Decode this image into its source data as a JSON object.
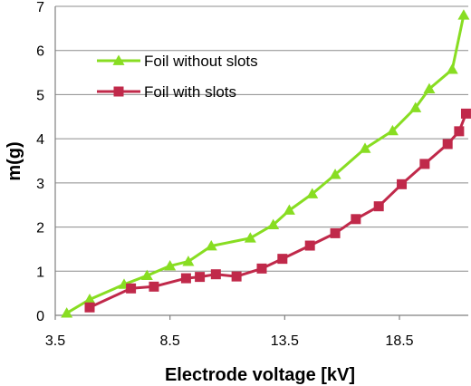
{
  "chart_data": {
    "type": "line",
    "xlabel": "Electrode voltage [kV]",
    "ylabel": "m(g)",
    "xlim": [
      3.5,
      21.5
    ],
    "ylim": [
      0,
      7
    ],
    "x_ticks": [
      3.5,
      8.5,
      13.5,
      18.5
    ],
    "x_tick_labels": [
      "3.5",
      "8.5",
      "13.5",
      "18.5"
    ],
    "y_ticks": [
      0,
      1,
      2,
      3,
      4,
      5,
      6,
      7
    ],
    "y_tick_labels": [
      "0",
      "1",
      "2",
      "3",
      "4",
      "5",
      "6",
      "7"
    ],
    "grid": "horizontal",
    "legend": "top-left",
    "series": [
      {
        "name": "Foil without slots",
        "color": "#88dd22",
        "marker": "triangle",
        "x": [
          4.0,
          5.0,
          6.5,
          7.5,
          8.5,
          9.3,
          10.3,
          12.0,
          13.0,
          13.7,
          14.7,
          15.7,
          17.0,
          18.2,
          19.2,
          19.8,
          20.8,
          21.3
        ],
        "y": [
          0.05,
          0.36,
          0.7,
          0.9,
          1.12,
          1.22,
          1.57,
          1.75,
          2.05,
          2.38,
          2.75,
          3.19,
          3.78,
          4.18,
          4.7,
          5.13,
          5.57,
          6.8
        ]
      },
      {
        "name": "Foil with slots",
        "color": "#c0294a",
        "marker": "square",
        "x": [
          5.0,
          6.8,
          7.8,
          9.2,
          9.8,
          10.5,
          11.4,
          12.5,
          13.4,
          14.6,
          15.7,
          16.6,
          17.6,
          18.6,
          19.6,
          20.6,
          21.1,
          21.4
        ],
        "y": [
          0.18,
          0.61,
          0.65,
          0.84,
          0.87,
          0.93,
          0.88,
          1.06,
          1.28,
          1.58,
          1.86,
          2.18,
          2.47,
          2.97,
          3.43,
          3.88,
          4.17,
          4.57
        ]
      }
    ]
  }
}
